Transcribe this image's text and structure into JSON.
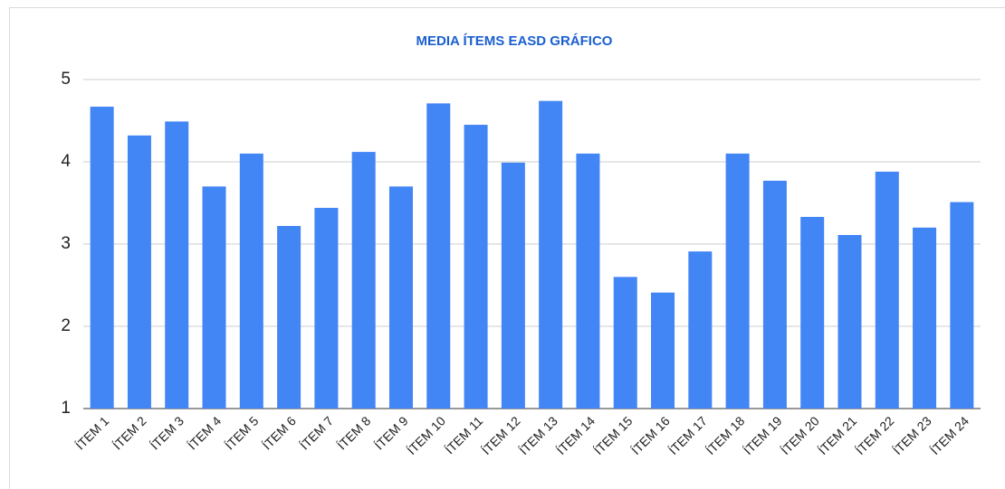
{
  "chart_data": {
    "type": "bar",
    "title": "MEDIA ÍTEMS EASD GRÁFICO",
    "categories": [
      "ÍTEM 1",
      "ÍTEM 2",
      "ÍTEM 3",
      "ÍTEM 4",
      "ÍTEM 5",
      "ÍTEM 6",
      "ÍTEM 7",
      "ÍTEM 8",
      "ÍTEM 9",
      "ÍTEM 10",
      "ÍTEM 11",
      "ÍTEM 12",
      "ÍTEM 13",
      "ÍTEM 14",
      "ÍTEM 15",
      "ÍTEM 16",
      "ÍTEM 17",
      "ÍTEM 18",
      "ÍTEM 19",
      "ÍTEM 20",
      "ÍTEM 21",
      "ÍTEM 22",
      "ÍTEM 23",
      "ÍTEM 24"
    ],
    "values": [
      4.67,
      4.32,
      4.49,
      3.7,
      4.1,
      3.22,
      3.44,
      4.12,
      3.7,
      4.71,
      4.45,
      3.99,
      4.74,
      4.1,
      2.6,
      2.41,
      2.91,
      4.1,
      3.77,
      3.33,
      3.11,
      3.88,
      3.2,
      3.51
    ],
    "color": "#4285f4",
    "ylim": [
      1,
      5
    ],
    "yticks": [
      1,
      2,
      3,
      4,
      5
    ],
    "grid": true
  }
}
